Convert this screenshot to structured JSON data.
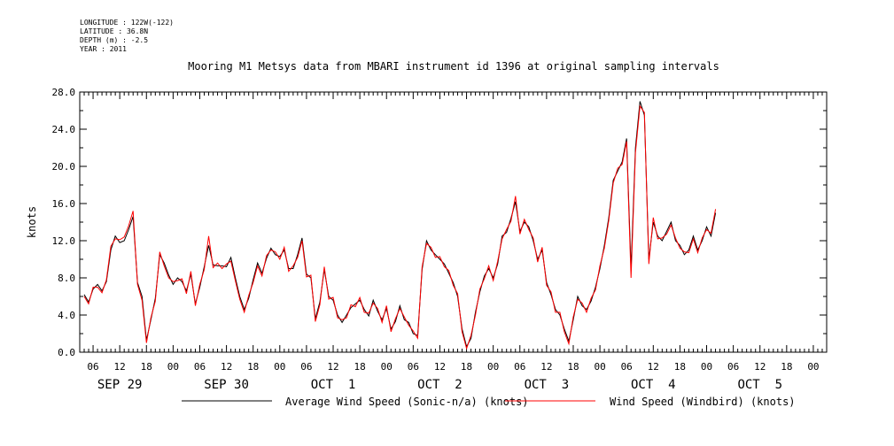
{
  "header": {
    "longitude": "LONGITUDE : 122W(-122)",
    "latitude": "LATITUDE : 36.8N",
    "depth": "DEPTH (m) : -2.5",
    "year": "YEAR : 2011"
  },
  "chart_data": {
    "type": "line",
    "title": "Mooring M1 Metsys data from MBARI instrument id 1396 at original sampling intervals",
    "xlabel": "",
    "ylabel": "knots",
    "ylim": [
      0,
      28
    ],
    "yticks": [
      0,
      4,
      8,
      12,
      16,
      20,
      24,
      28
    ],
    "ytick_labels": [
      "0.0",
      "4.0",
      "8.0",
      "12.0",
      "16.0",
      "20.0",
      "24.0",
      "28.0"
    ],
    "xlim_hours": [
      -21,
      147
    ],
    "hour_ticks": [
      {
        "h": -18,
        "label": "06"
      },
      {
        "h": -12,
        "label": "12"
      },
      {
        "h": -6,
        "label": "18"
      },
      {
        "h": 0,
        "label": "00"
      },
      {
        "h": 6,
        "label": "06"
      },
      {
        "h": 12,
        "label": "12"
      },
      {
        "h": 18,
        "label": "18"
      },
      {
        "h": 24,
        "label": "00"
      },
      {
        "h": 30,
        "label": "06"
      },
      {
        "h": 36,
        "label": "12"
      },
      {
        "h": 42,
        "label": "18"
      },
      {
        "h": 48,
        "label": "00"
      },
      {
        "h": 54,
        "label": "06"
      },
      {
        "h": 60,
        "label": "12"
      },
      {
        "h": 66,
        "label": "18"
      },
      {
        "h": 72,
        "label": "00"
      },
      {
        "h": 78,
        "label": "06"
      },
      {
        "h": 84,
        "label": "12"
      },
      {
        "h": 90,
        "label": "18"
      },
      {
        "h": 96,
        "label": "00"
      },
      {
        "h": 102,
        "label": "06"
      },
      {
        "h": 108,
        "label": "12"
      },
      {
        "h": 114,
        "label": "18"
      },
      {
        "h": 120,
        "label": "00"
      },
      {
        "h": 126,
        "label": "06"
      },
      {
        "h": 132,
        "label": "12"
      },
      {
        "h": 138,
        "label": "18"
      },
      {
        "h": 144,
        "label": "00"
      }
    ],
    "day_labels": [
      {
        "h": -12,
        "label": "SEP 29"
      },
      {
        "h": 12,
        "label": "SEP 30"
      },
      {
        "h": 36,
        "label": "OCT  1"
      },
      {
        "h": 60,
        "label": "OCT  2"
      },
      {
        "h": 84,
        "label": "OCT  3"
      },
      {
        "h": 108,
        "label": "OCT  4"
      },
      {
        "h": 132,
        "label": "OCT  5"
      }
    ],
    "x_hours": [
      -20,
      -19,
      -18,
      -17,
      -16,
      -15,
      -14,
      -13,
      -12,
      -11,
      -10,
      -9,
      -8,
      -7,
      -6,
      -5,
      -4,
      -3,
      -2,
      -1,
      0,
      1,
      2,
      3,
      4,
      5,
      6,
      7,
      8,
      9,
      10,
      11,
      12,
      13,
      14,
      15,
      16,
      17,
      18,
      19,
      20,
      21,
      22,
      23,
      24,
      25,
      26,
      27,
      28,
      29,
      30,
      31,
      32,
      33,
      34,
      35,
      36,
      37,
      38,
      39,
      40,
      41,
      42,
      43,
      44,
      45,
      46,
      47,
      48,
      49,
      50,
      51,
      52,
      53,
      54,
      55,
      56,
      57,
      58,
      59,
      60,
      61,
      62,
      63,
      64,
      65,
      66,
      67,
      68,
      69,
      70,
      71,
      72,
      73,
      74,
      75,
      76,
      77,
      78,
      79,
      80,
      81,
      82,
      83,
      84,
      85,
      86,
      87,
      88,
      89,
      90,
      91,
      92,
      93,
      94,
      95,
      96,
      97,
      98,
      99,
      100,
      101,
      102,
      103,
      104,
      105,
      106,
      107,
      108,
      109,
      110,
      111,
      112,
      113,
      114,
      115,
      116,
      117,
      118,
      119,
      120,
      121,
      122,
      123,
      124,
      125,
      126,
      127,
      128,
      129,
      130,
      131,
      132,
      133,
      134,
      135,
      136,
      137,
      138,
      139,
      140,
      141,
      142,
      143,
      144,
      145,
      146
    ],
    "series": [
      {
        "name": "Average Wind Speed (Sonic-n/a) (knots)",
        "color": "#000000",
        "values": [
          6.2,
          5.4,
          6.8,
          7.3,
          6.6,
          7.6,
          11.0,
          12.5,
          11.8,
          12.0,
          13.2,
          14.6,
          7.5,
          6.0,
          1.3,
          3.5,
          5.8,
          10.5,
          9.6,
          8.3,
          7.3,
          8.0,
          7.6,
          6.6,
          8.4,
          5.2,
          7.0,
          9.2,
          11.5,
          9.4,
          9.3,
          9.3,
          9.2,
          10.2,
          8.0,
          6.0,
          4.6,
          5.8,
          7.8,
          9.6,
          8.5,
          10.1,
          11.2,
          10.5,
          10.3,
          11.0,
          9.0,
          9.0,
          10.5,
          12.3,
          8.4,
          8.0,
          3.6,
          5.4,
          8.9,
          6.0,
          5.6,
          4.0,
          3.2,
          4.0,
          4.8,
          5.2,
          5.6,
          4.6,
          3.9,
          5.6,
          4.4,
          3.5,
          4.7,
          2.5,
          3.3,
          5.0,
          3.5,
          3.2,
          2.0,
          1.8,
          8.9,
          12.0,
          11.0,
          10.5,
          10.0,
          9.5,
          8.5,
          7.5,
          6.0,
          2.5,
          0.6,
          1.5,
          4.3,
          6.5,
          8.2,
          9.0,
          8.0,
          9.5,
          12.5,
          12.9,
          14.4,
          16.2,
          13.0,
          14.0,
          13.5,
          12.0,
          10.0,
          11.0,
          7.5,
          6.2,
          4.6,
          4.0,
          2.5,
          1.2,
          3.5,
          6.0,
          5.0,
          4.6,
          5.5,
          7.0,
          9.0,
          11.5,
          14.5,
          18.5,
          19.5,
          20.5,
          23.0,
          9.0,
          22.0,
          27.0,
          25.5,
          10.0,
          14.0,
          12.5,
          12.0,
          13.0,
          14.0,
          12.0,
          11.5,
          10.5,
          11.0,
          12.5,
          11.0,
          12.0,
          13.5,
          12.5,
          15.0
        ]
      },
      {
        "name": "Wind Speed (Windbird) (knots)",
        "color": "#ff0000",
        "values": [
          6.0,
          5.2,
          7.0,
          7.0,
          6.4,
          7.8,
          11.4,
          12.2,
          12.1,
          12.4,
          13.6,
          15.2,
          7.3,
          5.6,
          1.0,
          3.7,
          5.5,
          10.8,
          9.3,
          8.0,
          7.6,
          7.7,
          7.9,
          6.3,
          8.7,
          5.0,
          7.3,
          8.9,
          12.5,
          9.1,
          9.6,
          9.0,
          9.5,
          9.8,
          7.7,
          5.7,
          4.3,
          6.1,
          7.5,
          9.3,
          8.2,
          10.4,
          11.0,
          10.8,
          10.0,
          11.3,
          8.7,
          9.3,
          10.2,
          12.0,
          8.1,
          8.3,
          3.3,
          5.1,
          9.2,
          5.7,
          5.9,
          3.7,
          3.5,
          3.7,
          5.1,
          4.9,
          5.9,
          4.3,
          4.2,
          5.3,
          4.7,
          3.2,
          5.0,
          2.2,
          3.6,
          4.7,
          3.8,
          2.9,
          2.3,
          1.5,
          9.2,
          11.7,
          11.3,
          10.2,
          10.3,
          9.2,
          8.8,
          7.2,
          6.3,
          2.2,
          0.4,
          1.8,
          4.0,
          6.8,
          7.9,
          9.3,
          7.7,
          9.8,
          12.2,
          13.2,
          14.1,
          16.8,
          12.7,
          14.3,
          13.2,
          12.3,
          9.7,
          11.3,
          7.2,
          6.5,
          4.3,
          4.3,
          2.2,
          0.9,
          3.8,
          5.7,
          5.3,
          4.3,
          5.8,
          6.7,
          9.3,
          11.2,
          14.2,
          18.2,
          19.8,
          20.2,
          22.7,
          8.0,
          21.5,
          26.5,
          25.8,
          9.5,
          14.5,
          12.2,
          12.3,
          12.7,
          13.7,
          12.3,
          11.2,
          10.8,
          10.7,
          12.2,
          10.7,
          12.3,
          13.2,
          12.8,
          15.4
        ]
      }
    ]
  }
}
